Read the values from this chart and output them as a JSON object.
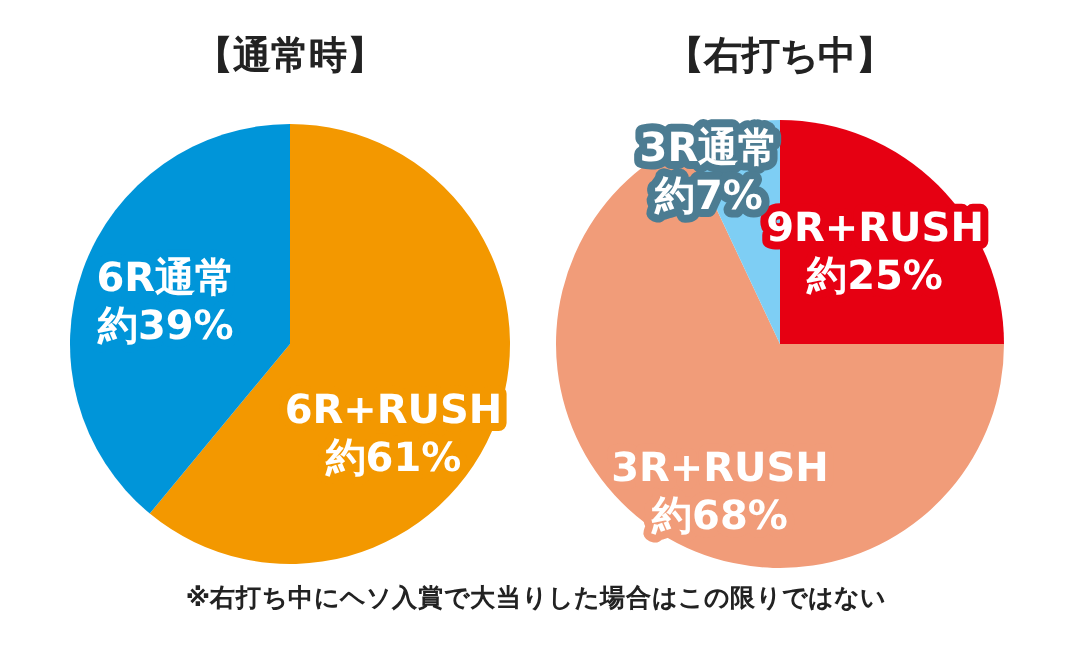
{
  "chart_data": [
    {
      "type": "pie",
      "title": "【通常時】",
      "categories": [
        "6R+RUSH",
        "6R通常"
      ],
      "values": [
        61,
        39
      ],
      "colors": [
        "#f39800",
        "#0095d9"
      ],
      "value_labels": [
        "約61%",
        "約39%"
      ]
    },
    {
      "type": "pie",
      "title": "【右打ち中】",
      "categories": [
        "9R+RUSH",
        "3R+RUSH",
        "3R通常"
      ],
      "values": [
        25,
        68,
        7
      ],
      "colors": [
        "#e60012",
        "#f19c79",
        "#7ecef4"
      ],
      "value_labels": [
        "約25%",
        "約68%",
        "約7%"
      ],
      "annotations": [
        "※右打ち中にヘソ入賞で大当りした場合はこの限りではない"
      ]
    }
  ]
}
